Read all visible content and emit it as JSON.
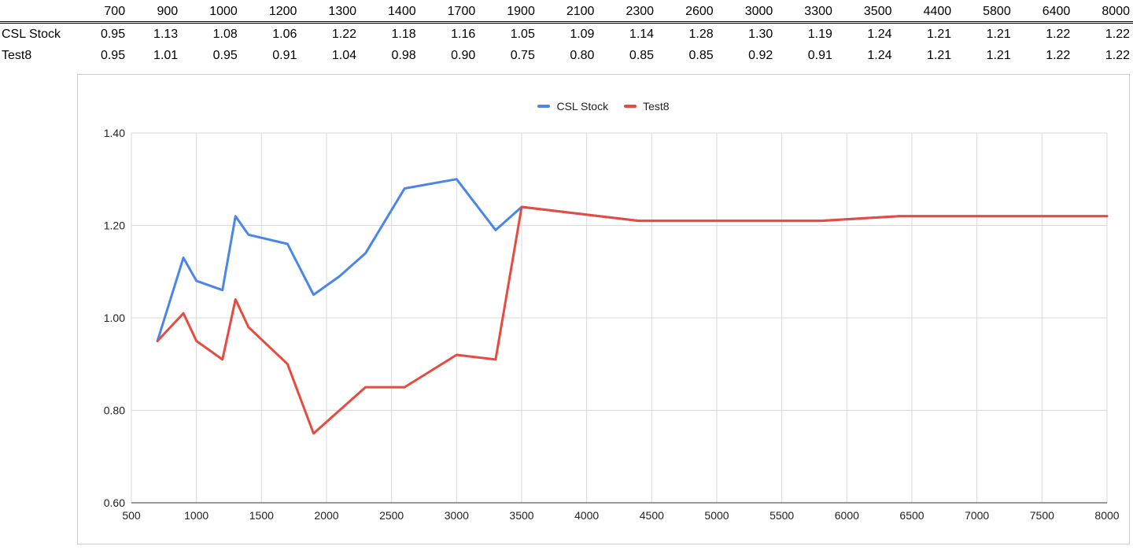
{
  "table": {
    "headers": [
      "700",
      "900",
      "1000",
      "1200",
      "1300",
      "1400",
      "1700",
      "1900",
      "2100",
      "2300",
      "2600",
      "3000",
      "3300",
      "3500",
      "4400",
      "5800",
      "6400",
      "8000"
    ],
    "rows": [
      {
        "label": "CSL Stock",
        "values": [
          "0.95",
          "1.13",
          "1.08",
          "1.06",
          "1.22",
          "1.18",
          "1.16",
          "1.05",
          "1.09",
          "1.14",
          "1.28",
          "1.30",
          "1.19",
          "1.24",
          "1.21",
          "1.21",
          "1.22",
          "1.22"
        ]
      },
      {
        "label": "Test8",
        "values": [
          "0.95",
          "1.01",
          "0.95",
          "0.91",
          "1.04",
          "0.98",
          "0.90",
          "0.75",
          "0.80",
          "0.85",
          "0.85",
          "0.92",
          "0.91",
          "1.24",
          "1.21",
          "1.21",
          "1.22",
          "1.22"
        ]
      }
    ]
  },
  "chart_data": {
    "type": "line",
    "title": "",
    "xlabel": "",
    "ylabel": "",
    "x": [
      700,
      900,
      1000,
      1200,
      1300,
      1400,
      1700,
      1900,
      2100,
      2300,
      2600,
      3000,
      3300,
      3500,
      4400,
      5800,
      6400,
      8000
    ],
    "series": [
      {
        "name": "CSL Stock",
        "color": "#4a86e8",
        "values": [
          0.95,
          1.13,
          1.08,
          1.06,
          1.22,
          1.18,
          1.16,
          1.05,
          1.09,
          1.14,
          1.28,
          1.3,
          1.19,
          1.24,
          1.21,
          1.21,
          1.22,
          1.22
        ]
      },
      {
        "name": "Test8",
        "color": "#e84a3f",
        "values": [
          0.95,
          1.01,
          0.95,
          0.91,
          1.04,
          0.98,
          0.9,
          0.75,
          0.8,
          0.85,
          0.85,
          0.92,
          0.91,
          1.24,
          1.21,
          1.21,
          1.22,
          1.22
        ]
      }
    ],
    "xlim": [
      500,
      8000
    ],
    "ylim": [
      0.6,
      1.4
    ],
    "x_ticks": [
      500,
      1000,
      1500,
      2000,
      2500,
      3000,
      3500,
      4000,
      4500,
      5000,
      5500,
      6000,
      6500,
      7000,
      7500,
      8000
    ],
    "y_ticks": [
      "0.60",
      "0.80",
      "1.00",
      "1.20",
      "1.40"
    ],
    "grid": true,
    "legend_position": "top"
  }
}
